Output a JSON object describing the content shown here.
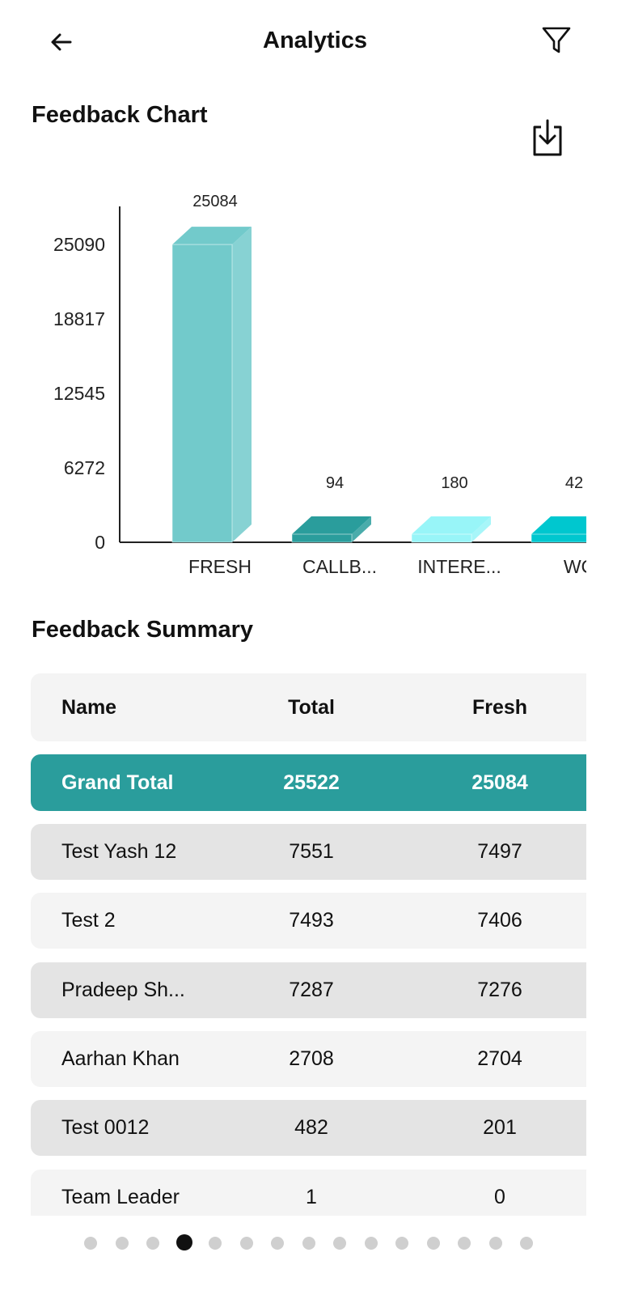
{
  "header": {
    "title": "Analytics",
    "back_icon": "arrow-left-icon",
    "filter_icon": "filter-funnel-icon"
  },
  "feedback_chart": {
    "title": "Feedback Chart",
    "download_icon": "download-icon"
  },
  "chart_data": {
    "type": "bar",
    "title": "",
    "xlabel": "",
    "ylabel": "",
    "categories": [
      "FRESH",
      "CALLB...",
      "INTERE...",
      "WC"
    ],
    "values": [
      25084,
      94,
      180,
      42
    ],
    "ylim": [
      0,
      25090
    ],
    "yticks": [
      "25090",
      "18817",
      "12545",
      "6272",
      "0"
    ],
    "colors": [
      "#72cacb",
      "#2a9d9c",
      "#98f5f8",
      "#00c7cf"
    ],
    "grid": false,
    "style": "3d"
  },
  "summary": {
    "title": "Feedback Summary",
    "columns": [
      "Name",
      "Total",
      "Fresh"
    ],
    "grand_total": {
      "name": "Grand Total",
      "total": "25522",
      "fresh": "25084"
    },
    "rows": [
      {
        "name": "Test Yash 12",
        "total": "7551",
        "fresh": "7497"
      },
      {
        "name": "Test 2",
        "total": "7493",
        "fresh": "7406"
      },
      {
        "name": "Pradeep Sh...",
        "total": "7287",
        "fresh": "7276"
      },
      {
        "name": "Aarhan Khan",
        "total": "2708",
        "fresh": "2704"
      },
      {
        "name": "Test 0012",
        "total": "482",
        "fresh": "201"
      },
      {
        "name": "Team Leader",
        "total": "1",
        "fresh": "0"
      }
    ]
  },
  "pagination": {
    "count": 15,
    "active": 3
  },
  "colors": {
    "accent": "#2a9d9c",
    "row_dark": "#e4e4e4",
    "row_light": "#f4f4f4"
  }
}
